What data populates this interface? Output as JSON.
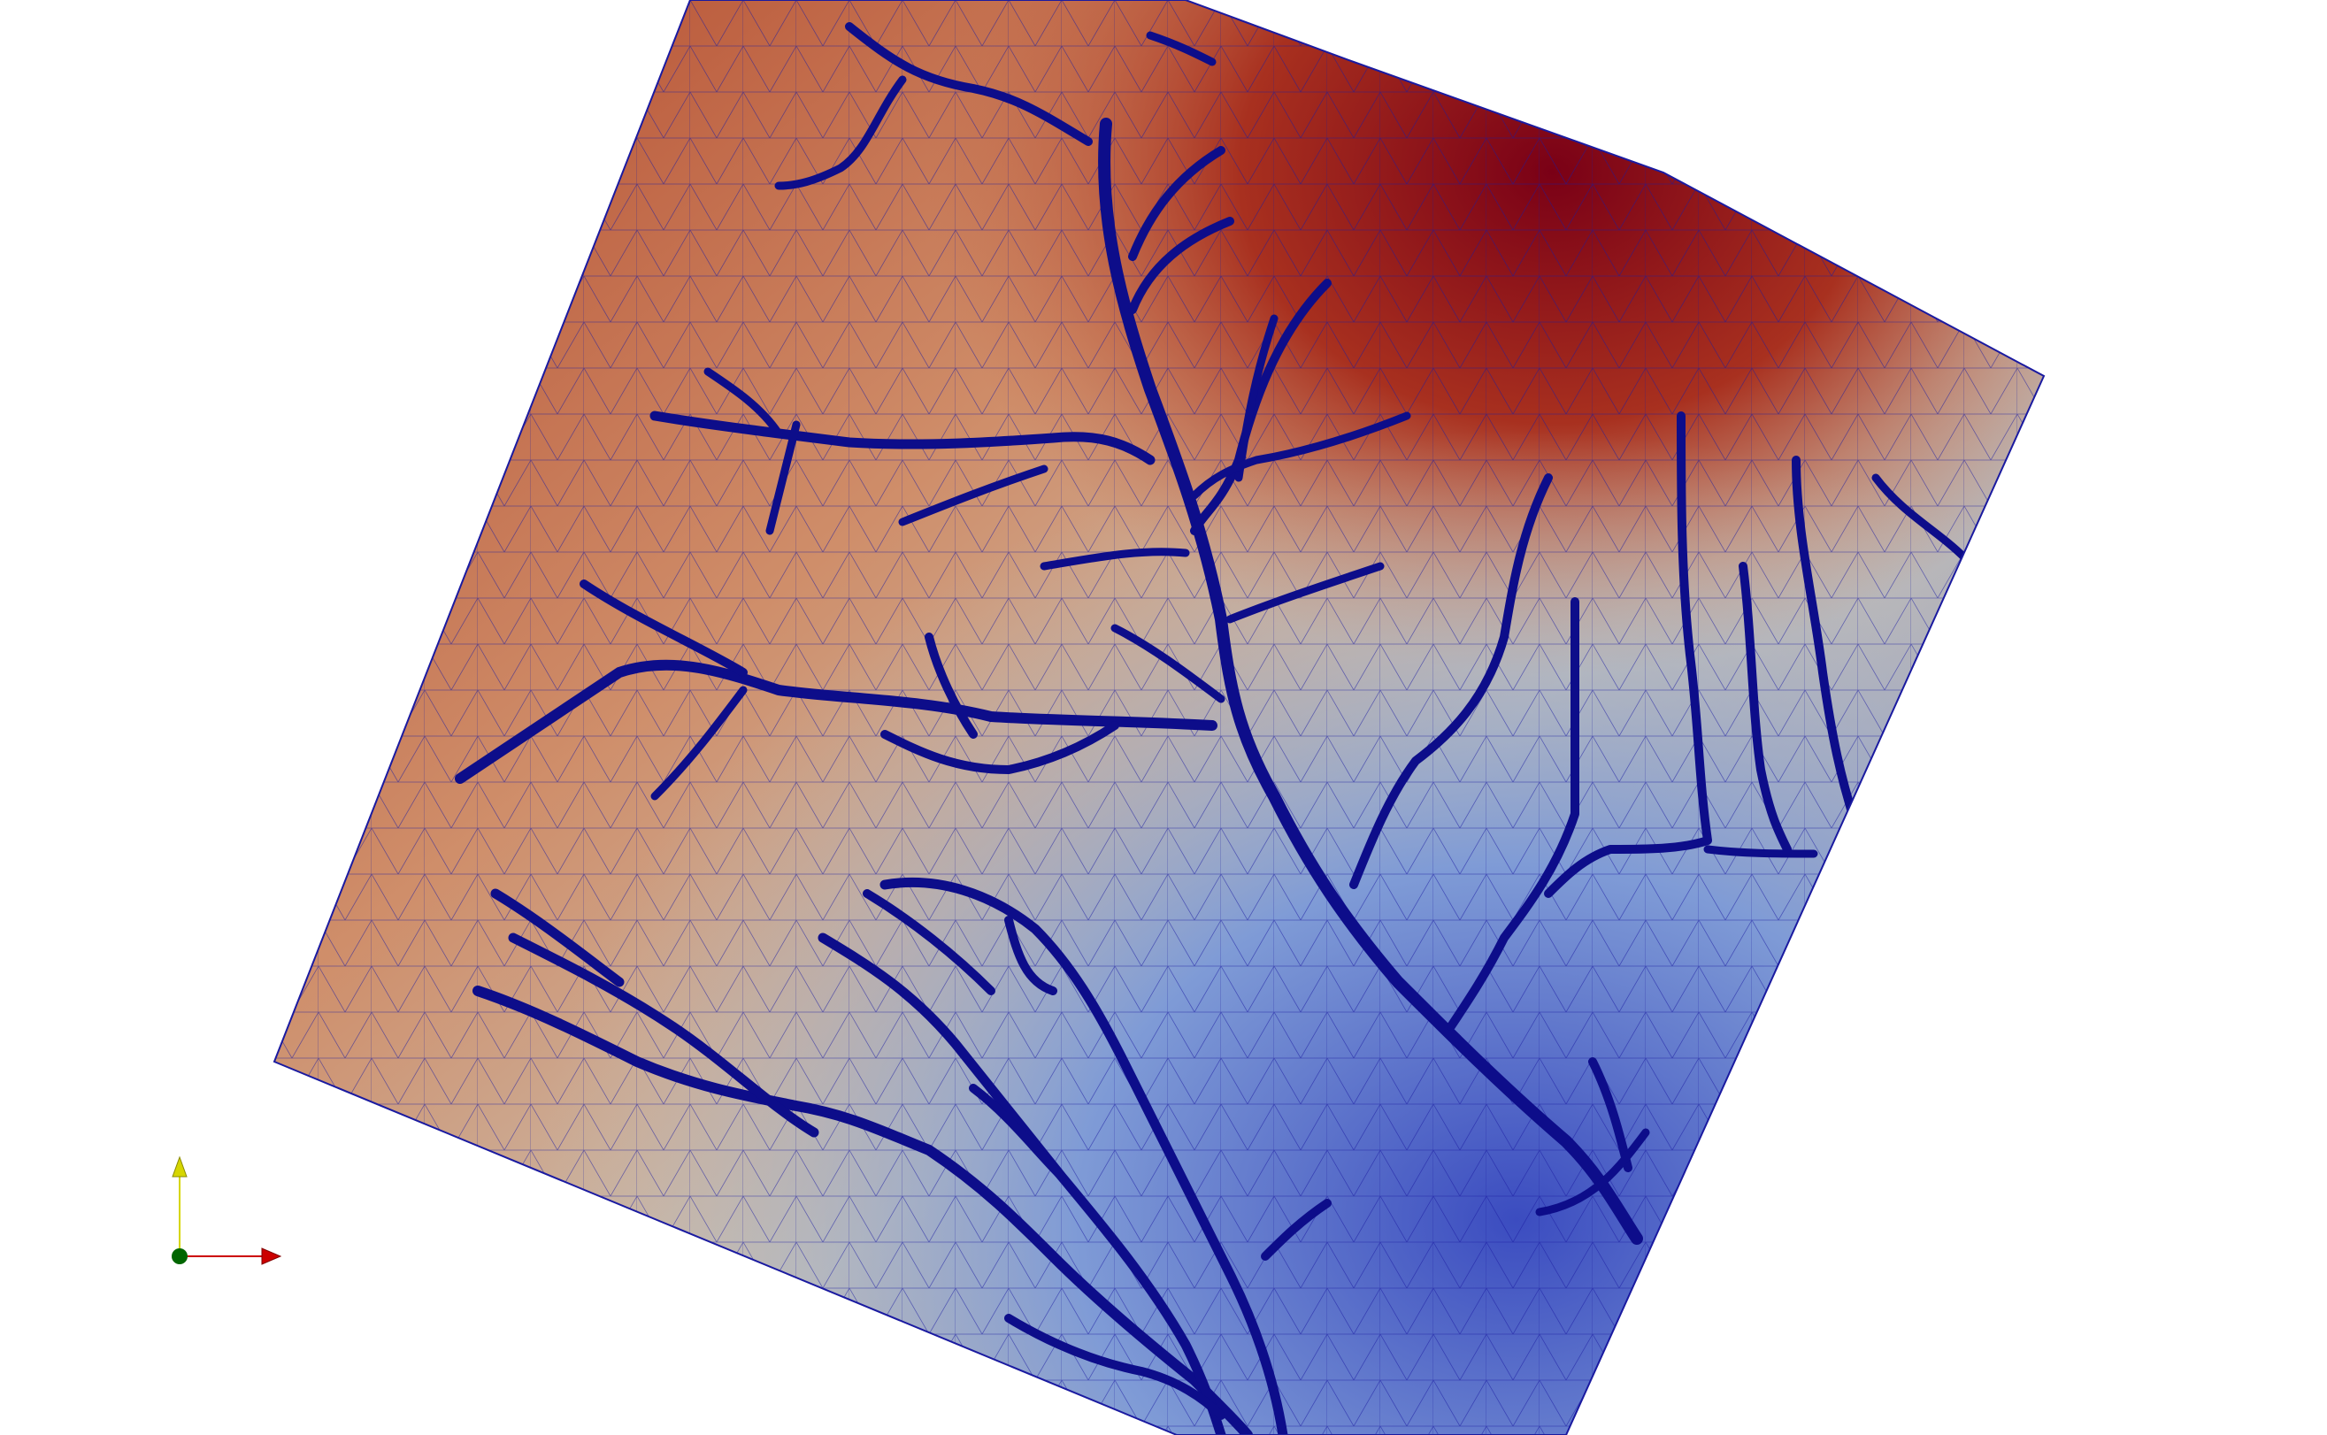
{
  "view": {
    "background": "#ffffff",
    "mesh_edge_color": "#1a1aa0",
    "channel_color": "#0d0d8a",
    "colormap": [
      "#3b4cc0",
      "#7f9bd6",
      "#c8c2b6",
      "#cf8e6a",
      "#b4472a",
      "#7a0016"
    ]
  },
  "axes_widget": {
    "x_axis_color": "#cc0000",
    "y_axis_color": "#d6d600",
    "origin_color": "#006600"
  }
}
